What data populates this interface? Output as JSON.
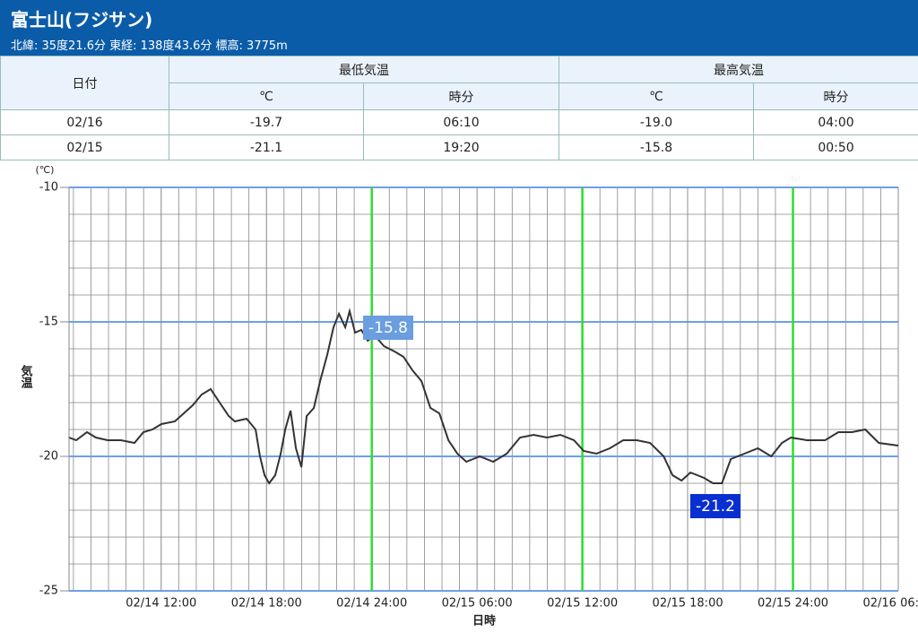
{
  "header": {
    "title": "富士山(フジサン)",
    "subtitle": "北緯: 35度21.6分 東経: 138度43.6分 標高: 3775m"
  },
  "table": {
    "headers": [
      "日付",
      "最低気温",
      "最高気温"
    ],
    "subheaders": [
      "℃",
      "時分",
      "℃",
      "時分"
    ],
    "rows": [
      [
        "02/16",
        "-19.7",
        "06:10",
        "-19.0",
        "04:00"
      ],
      [
        "02/15",
        "-21.1",
        "19:20",
        "-15.8",
        "00:50"
      ]
    ]
  },
  "chart_data": {
    "type": "line",
    "x_label": "日時",
    "y_label": "気温",
    "y_unit": "(℃)",
    "x": [
      6.75,
      7.16,
      7.77,
      8.28,
      8.95,
      9.71,
      10.48,
      10.99,
      11.5,
      12.01,
      12.78,
      13.29,
      13.8,
      14.31,
      14.82,
      15.33,
      15.85,
      16.2,
      16.87,
      17.38,
      17.63,
      17.89,
      18.15,
      18.5,
      18.81,
      19.07,
      19.37,
      19.68,
      19.99,
      20.29,
      20.7,
      21.06,
      21.47,
      21.82,
      22.13,
      22.49,
      22.74,
      23.05,
      23.41,
      23.77,
      24.17,
      24.69,
      25.3,
      25.81,
      26.32,
      26.83,
      27.34,
      27.85,
      28.37,
      28.88,
      29.39,
      30.15,
      30.92,
      31.69,
      32.45,
      33.22,
      33.99,
      34.75,
      35.52,
      36.08,
      36.8,
      37.56,
      38.33,
      39.1,
      39.86,
      40.63,
      41.14,
      41.65,
      42.16,
      42.93,
      43.44,
      43.95,
      44.46,
      45.23,
      46.0,
      46.76,
      47.37,
      47.88,
      48.8,
      49.83,
      50.59,
      51.36,
      52.12,
      52.89,
      54.0
    ],
    "values": [
      -19.3,
      -19.4,
      -19.1,
      -19.3,
      -19.4,
      -19.4,
      -19.5,
      -19.1,
      -19.0,
      -18.8,
      -18.7,
      -18.4,
      -18.1,
      -17.7,
      -17.5,
      -18.0,
      -18.5,
      -18.7,
      -18.6,
      -19.0,
      -20.0,
      -20.7,
      -21.0,
      -20.7,
      -19.9,
      -19.0,
      -18.3,
      -19.7,
      -20.4,
      -18.5,
      -18.2,
      -17.2,
      -16.2,
      -15.2,
      -14.7,
      -15.2,
      -14.6,
      -15.4,
      -15.3,
      -15.7,
      -15.5,
      -15.9,
      -16.1,
      -16.3,
      -16.8,
      -17.2,
      -18.2,
      -18.4,
      -19.4,
      -19.9,
      -20.2,
      -20.0,
      -20.2,
      -19.9,
      -19.3,
      -19.2,
      -19.3,
      -19.2,
      -19.4,
      -19.8,
      -19.9,
      -19.7,
      -19.4,
      -19.4,
      -19.5,
      -20.0,
      -20.7,
      -20.9,
      -20.6,
      -20.8,
      -21.0,
      -21.0,
      -20.1,
      -19.9,
      -19.7,
      -20.0,
      -19.5,
      -19.3,
      -19.4,
      -19.4,
      -19.1,
      -19.1,
      -19.0,
      -19.5,
      -19.6
    ],
    "color": "#333333",
    "xlim": [
      6.75,
      54
    ],
    "ylim": [
      -25,
      -10
    ],
    "xticks": [
      {
        "value": 12,
        "label": "02/14 12:00"
      },
      {
        "value": 18,
        "label": "02/14 18:00"
      },
      {
        "value": 24,
        "label": "02/14 24:00",
        "color": "#2edc2e"
      },
      {
        "value": 30,
        "label": "02/15 06:00"
      },
      {
        "value": 36,
        "label": "02/15 12:00",
        "color": "#2edc2e"
      },
      {
        "value": 42,
        "label": "02/15 18:00"
      },
      {
        "value": 48,
        "label": "02/15 24:00",
        "color": "#2edc2e"
      },
      {
        "value": 54,
        "label": "02/16 06:00"
      }
    ],
    "yticks": [
      -10,
      -15,
      -20,
      -25
    ],
    "ygrid_color": "#6f9fe6",
    "annotations": [
      {
        "label": "-15.8",
        "color": "#6a9ee0"
      },
      {
        "label": "-21.2",
        "color": "#0a2fd0"
      }
    ]
  }
}
